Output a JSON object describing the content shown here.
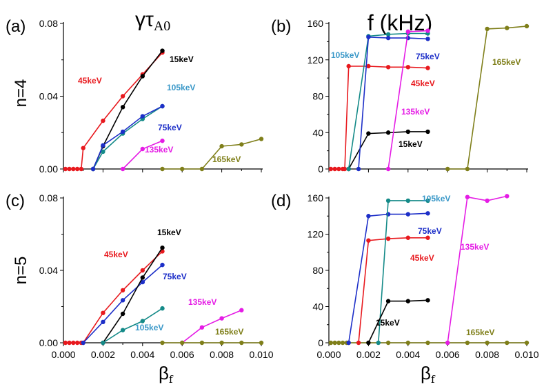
{
  "figure": {
    "col_titles": [
      {
        "symbol": "γτ",
        "subscript": "A0"
      },
      {
        "text": "f (kHz)"
      }
    ],
    "row_labels": [
      "n=4",
      "n=5"
    ],
    "xlabel": {
      "symbol": "β",
      "subscript": "f"
    }
  },
  "colors": {
    "15keV": "#000000",
    "45keV": "#e8191e",
    "75keV": "#1d2fc8",
    "105keV": "#148a88",
    "105keV_label": "#3a98c8",
    "135keV": "#e51ce5",
    "165keV": "#7f7f1a"
  },
  "chart_data": [
    {
      "panel": "(a)",
      "type": "line",
      "title": "γτA0",
      "row": "n=4",
      "xlabel": "βf",
      "ylabel": "",
      "xlim": [
        0.0,
        0.01
      ],
      "ylim": [
        0.0,
        0.08
      ],
      "xticks": [
        "0.000",
        "0.002",
        "0.004",
        "0.006",
        "0.008",
        "0.010"
      ],
      "yticks": [
        "0.00",
        "0.04",
        "0.08"
      ],
      "series": [
        {
          "name": "45keV",
          "label": "45keV",
          "x": [
            0.0001,
            0.0003,
            0.0005,
            0.0007,
            0.0009,
            0.001,
            0.002,
            0.003,
            0.004,
            0.005
          ],
          "y": [
            0,
            0,
            0,
            0,
            0,
            0.0115,
            0.0265,
            0.04,
            0.052,
            0.064
          ]
        },
        {
          "name": "15keV",
          "label": "15keV",
          "x": [
            0.0015,
            0.002,
            0.003,
            0.004,
            0.005
          ],
          "y": [
            0,
            0.0125,
            0.034,
            0.051,
            0.065
          ]
        },
        {
          "name": "105keV",
          "label": "105keV",
          "x": [
            0.0015,
            0.002,
            0.003,
            0.004,
            0.005
          ],
          "y": [
            0,
            0.0095,
            0.0195,
            0.0275,
            0.0345
          ]
        },
        {
          "name": "75keV",
          "label": "75keV",
          "x": [
            0.0015,
            0.002,
            0.003,
            0.004,
            0.005
          ],
          "y": [
            0,
            0.013,
            0.0205,
            0.029,
            0.0345
          ]
        },
        {
          "name": "135keV",
          "label": "135keV",
          "x": [
            0.003,
            0.004,
            0.005
          ],
          "y": [
            0,
            0.011,
            0.0155
          ]
        },
        {
          "name": "165keV",
          "label": "165keV",
          "x": [
            0.005,
            0.006,
            0.007,
            0.008,
            0.009,
            0.01
          ],
          "y": [
            0,
            0,
            0,
            0.0125,
            0.0135,
            0.0165
          ]
        }
      ]
    },
    {
      "panel": "(b)",
      "type": "line",
      "title": "f (kHz)",
      "row": "n=4",
      "xlabel": "βf",
      "ylabel": "",
      "xlim": [
        0.0,
        0.01
      ],
      "ylim": [
        0,
        160
      ],
      "xticks": [
        "0.000",
        "0.002",
        "0.004",
        "0.006",
        "0.008",
        "0.010"
      ],
      "yticks": [
        "0",
        "40",
        "80",
        "120",
        "160"
      ],
      "series": [
        {
          "name": "45keV",
          "label": "45keV",
          "x": [
            0.0001,
            0.0003,
            0.0005,
            0.0007,
            0.0008,
            0.001,
            0.002,
            0.003,
            0.004,
            0.005
          ],
          "y": [
            0,
            0,
            0,
            0,
            0,
            113,
            113,
            112,
            112,
            111
          ]
        },
        {
          "name": "15keV",
          "label": "15keV",
          "x": [
            0.001,
            0.002,
            0.003,
            0.004,
            0.005
          ],
          "y": [
            0,
            39,
            40,
            41,
            41
          ]
        },
        {
          "name": "105keV",
          "label": "105keV",
          "x": [
            0.001,
            0.002,
            0.003,
            0.004,
            0.005
          ],
          "y": [
            0,
            146,
            148,
            149,
            149
          ]
        },
        {
          "name": "75keV",
          "label": "75keV",
          "x": [
            0.0015,
            0.002,
            0.003,
            0.004,
            0.005
          ],
          "y": [
            0,
            145,
            144,
            144,
            143
          ]
        },
        {
          "name": "135keV",
          "label": "135keV",
          "x": [
            0.003,
            0.004,
            0.005
          ],
          "y": [
            0,
            151,
            152
          ]
        },
        {
          "name": "165keV",
          "label": "165keV",
          "x": [
            0.006,
            0.007,
            0.008,
            0.009,
            0.01
          ],
          "y": [
            0,
            0,
            154,
            155,
            157
          ]
        }
      ]
    },
    {
      "panel": "(c)",
      "type": "line",
      "title": "",
      "row": "n=5",
      "xlabel": "βf",
      "ylabel": "",
      "xlim": [
        0.0,
        0.01
      ],
      "ylim": [
        0.0,
        0.08
      ],
      "xticks": [
        "0.000",
        "0.002",
        "0.004",
        "0.006",
        "0.008",
        "0.010"
      ],
      "yticks": [
        "0.00",
        "0.04",
        "0.08"
      ],
      "series": [
        {
          "name": "45keV",
          "label": "45keV",
          "x": [
            0.0001,
            0.0003,
            0.0005,
            0.0007,
            0.0009,
            0.001,
            0.002,
            0.003,
            0.004,
            0.005
          ],
          "y": [
            0,
            0,
            0,
            0,
            0,
            0,
            0.0165,
            0.029,
            0.04,
            0.0505
          ]
        },
        {
          "name": "75keV",
          "label": "75keV",
          "x": [
            0.001,
            0.002,
            0.003,
            0.004,
            0.005
          ],
          "y": [
            0,
            0.0115,
            0.0235,
            0.0335,
            0.043
          ]
        },
        {
          "name": "15keV",
          "label": "15keV",
          "x": [
            0.002,
            0.003,
            0.004,
            0.005
          ],
          "y": [
            0,
            0.016,
            0.036,
            0.0525
          ]
        },
        {
          "name": "105keV",
          "label": "105keV",
          "x": [
            0.002,
            0.003,
            0.004,
            0.005
          ],
          "y": [
            0,
            0.007,
            0.012,
            0.019
          ]
        },
        {
          "name": "135keV",
          "label": "135keV",
          "x": [
            0.006,
            0.007,
            0.008,
            0.009
          ],
          "y": [
            0,
            0.0085,
            0.0135,
            0.018
          ]
        },
        {
          "name": "165keV",
          "label": "165keV",
          "x": [
            0.005,
            0.006,
            0.007,
            0.008,
            0.009,
            0.01
          ],
          "y": [
            0,
            0,
            0,
            0,
            0,
            0
          ]
        }
      ]
    },
    {
      "panel": "(d)",
      "type": "line",
      "title": "",
      "row": "n=5",
      "xlabel": "βf",
      "ylabel": "",
      "xlim": [
        0.0,
        0.01
      ],
      "ylim": [
        0,
        160
      ],
      "xticks": [
        "0.000",
        "0.002",
        "0.004",
        "0.006",
        "0.008",
        "0.010"
      ],
      "yticks": [
        "0",
        "40",
        "80",
        "120",
        "160"
      ],
      "series": [
        {
          "name": "165keV",
          "label": "165keV",
          "x": [
            0.0001,
            0.0003,
            0.0005,
            0.0007,
            0.0009,
            0.001,
            0.002,
            0.003,
            0.004,
            0.005,
            0.006,
            0.007,
            0.008,
            0.009,
            0.01
          ],
          "y": [
            0,
            0,
            0,
            0,
            0,
            0,
            0,
            0,
            0,
            0,
            0,
            0,
            0,
            0,
            0
          ]
        },
        {
          "name": "75keV",
          "label": "75keV",
          "x": [
            0.001,
            0.002,
            0.003,
            0.004,
            0.005
          ],
          "y": [
            0,
            140,
            142,
            142,
            143
          ]
        },
        {
          "name": "45keV",
          "label": "45keV",
          "x": [
            0.0015,
            0.002,
            0.003,
            0.004,
            0.005
          ],
          "y": [
            0,
            113,
            115,
            116,
            116
          ]
        },
        {
          "name": "105keV",
          "label": "105keV",
          "x": [
            0.0025,
            0.003,
            0.004,
            0.005
          ],
          "y": [
            0,
            157,
            157,
            157
          ]
        },
        {
          "name": "15keV",
          "label": "15keV",
          "x": [
            0.002,
            0.003,
            0.004,
            0.005
          ],
          "y": [
            0,
            46,
            46,
            47
          ]
        },
        {
          "name": "135keV",
          "label": "135keV",
          "x": [
            0.006,
            0.007,
            0.008,
            0.009
          ],
          "y": [
            0,
            161,
            157,
            162
          ]
        }
      ]
    }
  ]
}
